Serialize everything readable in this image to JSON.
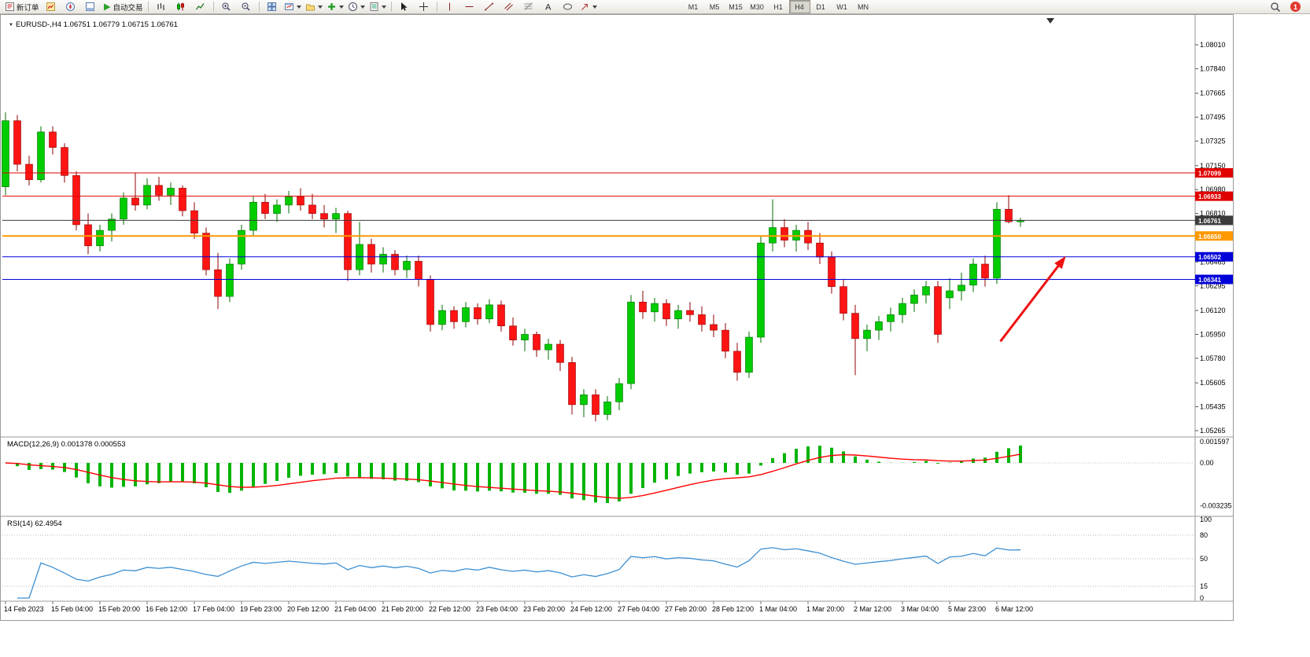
{
  "toolbar": {
    "new_order_label": "新订单",
    "auto_trading_label": "自动交易",
    "timeframes": [
      "M1",
      "M5",
      "M15",
      "M30",
      "H1",
      "H4",
      "D1",
      "W1",
      "MN"
    ],
    "active_timeframe": "H4",
    "badge_count": "1"
  },
  "window": {
    "symbol_title": "EURUSD-,H4",
    "ohlc": "1.06751 1.06779 1.06715 1.06761"
  },
  "panels": {
    "macd": {
      "name": "MACD(12,26,9)",
      "values": "0.001378 0.000553"
    },
    "rsi": {
      "name": "RSI(14)",
      "value": "62.4954"
    }
  },
  "chart_data": {
    "type": "candlestick",
    "symbol": "EURUSD-",
    "timeframe": "H4",
    "ohlc_display": {
      "open": "1.06751",
      "high": "1.06779",
      "low": "1.06715",
      "close": "1.06761"
    },
    "price_axis": {
      "ticks": [
        "1.08010",
        "1.07840",
        "1.07665",
        "1.07495",
        "1.07325",
        "1.07150",
        "1.06980",
        "1.06810",
        "1.06635",
        "1.06465",
        "1.06295",
        "1.06120",
        "1.05950",
        "1.05780",
        "1.05605",
        "1.05435",
        "1.05265"
      ]
    },
    "time_labels": [
      "14 Feb 2023",
      "15 Feb 04:00",
      "15 Feb 20:00",
      "16 Feb 12:00",
      "17 Feb 04:00",
      "19 Feb 23:00",
      "20 Feb 12:00",
      "21 Feb 04:00",
      "21 Feb 20:00",
      "22 Feb 12:00",
      "23 Feb 04:00",
      "23 Feb 20:00",
      "24 Feb 12:00",
      "27 Feb 04:00",
      "27 Feb 20:00",
      "28 Feb 12:00",
      "1 Mar 04:00",
      "1 Mar 20:00",
      "2 Mar 12:00",
      "3 Mar 04:00",
      "5 Mar 23:00",
      "6 Mar 12:00"
    ],
    "candles": [
      [
        1.07,
        1.0753,
        1.0694,
        1.0747
      ],
      [
        1.0747,
        1.0751,
        1.0711,
        1.0716
      ],
      [
        1.0716,
        1.0722,
        1.0701,
        1.0705
      ],
      [
        1.0705,
        1.0743,
        1.0703,
        1.0739
      ],
      [
        1.0739,
        1.0743,
        1.0723,
        1.0728
      ],
      [
        1.0728,
        1.0731,
        1.0703,
        1.0708
      ],
      [
        1.0708,
        1.0711,
        1.0669,
        1.0673
      ],
      [
        1.0673,
        1.0681,
        1.0652,
        1.0658
      ],
      [
        1.0658,
        1.0673,
        1.0654,
        1.0669
      ],
      [
        1.0669,
        1.0681,
        1.0661,
        1.0677
      ],
      [
        1.0677,
        1.0696,
        1.0673,
        1.0692
      ],
      [
        1.0692,
        1.071,
        1.0683,
        1.0687
      ],
      [
        1.0687,
        1.0706,
        1.0684,
        1.0701
      ],
      [
        1.0701,
        1.0707,
        1.069,
        1.0694
      ],
      [
        1.0694,
        1.0703,
        1.0687,
        1.0699
      ],
      [
        1.0699,
        1.0701,
        1.0679,
        1.0683
      ],
      [
        1.0683,
        1.0689,
        1.0663,
        1.0667
      ],
      [
        1.0667,
        1.0671,
        1.0637,
        1.0641
      ],
      [
        1.0641,
        1.0653,
        1.0613,
        1.0622
      ],
      [
        1.0622,
        1.0649,
        1.0618,
        1.0645
      ],
      [
        1.0645,
        1.0673,
        1.0641,
        1.0669
      ],
      [
        1.0669,
        1.0693,
        1.0665,
        1.0689
      ],
      [
        1.0689,
        1.0695,
        1.0677,
        1.0681
      ],
      [
        1.0681,
        1.0691,
        1.0675,
        1.0687
      ],
      [
        1.0687,
        1.0697,
        1.0681,
        1.0693
      ],
      [
        1.0693,
        1.0699,
        1.0683,
        1.0687
      ],
      [
        1.0687,
        1.0695,
        1.0677,
        1.0681
      ],
      [
        1.0681,
        1.0687,
        1.0671,
        1.0677
      ],
      [
        1.0677,
        1.0685,
        1.0667,
        1.0681
      ],
      [
        1.0681,
        1.0683,
        1.0633,
        1.0641
      ],
      [
        1.0641,
        1.0675,
        1.0637,
        1.0659
      ],
      [
        1.0659,
        1.0663,
        1.0639,
        1.0645
      ],
      [
        1.0645,
        1.0657,
        1.0639,
        1.0652
      ],
      [
        1.0652,
        1.0655,
        1.0637,
        1.0641
      ],
      [
        1.0641,
        1.0651,
        1.0635,
        1.0647
      ],
      [
        1.0647,
        1.0651,
        1.0629,
        1.0634
      ],
      [
        1.0634,
        1.0637,
        1.0597,
        1.0602
      ],
      [
        1.0602,
        1.0616,
        1.0598,
        1.0612
      ],
      [
        1.0612,
        1.0615,
        1.0599,
        1.0604
      ],
      [
        1.0604,
        1.0618,
        1.06,
        1.0614
      ],
      [
        1.0614,
        1.0617,
        1.0602,
        1.0606
      ],
      [
        1.0606,
        1.062,
        1.0603,
        1.0616
      ],
      [
        1.0616,
        1.0619,
        1.0597,
        1.0601
      ],
      [
        1.0601,
        1.0607,
        1.0587,
        1.0591
      ],
      [
        1.0591,
        1.0599,
        1.0583,
        1.0595
      ],
      [
        1.0595,
        1.0597,
        1.0579,
        1.0584
      ],
      [
        1.0584,
        1.0592,
        1.0577,
        1.0588
      ],
      [
        1.0588,
        1.0591,
        1.0569,
        1.0575
      ],
      [
        1.0575,
        1.0579,
        1.0538,
        1.0545
      ],
      [
        1.0545,
        1.0556,
        1.0536,
        1.0552
      ],
      [
        1.0552,
        1.0556,
        1.0533,
        1.0538
      ],
      [
        1.0538,
        1.0551,
        1.0534,
        1.0547
      ],
      [
        1.0547,
        1.0564,
        1.0541,
        1.056
      ],
      [
        1.056,
        1.0623,
        1.0556,
        1.0618
      ],
      [
        1.0618,
        1.0626,
        1.0606,
        1.0611
      ],
      [
        1.0611,
        1.0621,
        1.0604,
        1.0617
      ],
      [
        1.0617,
        1.062,
        1.0601,
        1.0606
      ],
      [
        1.0606,
        1.0616,
        1.0599,
        1.0612
      ],
      [
        1.0612,
        1.0618,
        1.0604,
        1.0609
      ],
      [
        1.0609,
        1.0615,
        1.0597,
        1.0602
      ],
      [
        1.0602,
        1.0609,
        1.0593,
        1.0598
      ],
      [
        1.0598,
        1.0603,
        1.0578,
        1.0583
      ],
      [
        1.0583,
        1.0589,
        1.0562,
        1.0568
      ],
      [
        1.0568,
        1.0597,
        1.0564,
        1.0593
      ],
      [
        1.0593,
        1.0665,
        1.0589,
        1.066
      ],
      [
        1.066,
        1.0691,
        1.0654,
        1.0671
      ],
      [
        1.0671,
        1.0677,
        1.0657,
        1.0662
      ],
      [
        1.0662,
        1.0673,
        1.0654,
        1.0669
      ],
      [
        1.0669,
        1.0675,
        1.0655,
        1.066
      ],
      [
        1.066,
        1.0667,
        1.0645,
        1.065
      ],
      [
        1.065,
        1.0654,
        1.0624,
        1.0629
      ],
      [
        1.0629,
        1.0634,
        1.0605,
        1.061
      ],
      [
        1.061,
        1.0616,
        1.0566,
        1.0592
      ],
      [
        1.0592,
        1.0602,
        1.0583,
        1.0598
      ],
      [
        1.0598,
        1.0608,
        1.0591,
        1.0604
      ],
      [
        1.0604,
        1.0614,
        1.0597,
        1.0609
      ],
      [
        1.0609,
        1.0621,
        1.0603,
        1.0617
      ],
      [
        1.0617,
        1.0627,
        1.0611,
        1.0623
      ],
      [
        1.0623,
        1.0633,
        1.0617,
        1.0629
      ],
      [
        1.0629,
        1.0633,
        1.0589,
        1.0595
      ],
      [
        1.0621,
        1.0635,
        1.0613,
        1.0626
      ],
      [
        1.0626,
        1.0639,
        1.0619,
        1.063
      ],
      [
        1.063,
        1.0649,
        1.0625,
        1.0645
      ],
      [
        1.0645,
        1.0651,
        1.0629,
        1.0635
      ],
      [
        1.0635,
        1.0689,
        1.0631,
        1.0684
      ],
      [
        1.0684,
        1.0694,
        1.0674,
        1.06751
      ],
      [
        1.06751,
        1.06779,
        1.06715,
        1.06761
      ]
    ],
    "hlines": [
      {
        "price": 1.07099,
        "label": "1.07099",
        "color": "#e00000",
        "width": 1
      },
      {
        "price": 1.06933,
        "label": "1.06933",
        "color": "#e00000",
        "width": 1
      },
      {
        "price": 1.06761,
        "label": "1.06761",
        "color": "#3c3c3c",
        "width": 1
      },
      {
        "price": 1.0665,
        "label": "1.06650",
        "color": "#ff9900",
        "width": 2
      },
      {
        "price": 1.06502,
        "label": "1.06502",
        "color": "#0000d8",
        "width": 1
      },
      {
        "price": 1.06341,
        "label": "1.06341",
        "color": "#0000d8",
        "width": 1
      }
    ],
    "arrow": {
      "from_bar": 84.3,
      "from_price": 1.059,
      "to_bar": 89.6,
      "to_price": 1.0648,
      "color": "#ee1111"
    },
    "macd": {
      "label": "MACD(12,26,9)",
      "fast": 12,
      "slow": 26,
      "signal": 9,
      "value": "0.001378",
      "signal_value": "0.000553",
      "axis": [
        "0.001597",
        "0.00",
        "-0.003235"
      ],
      "hist_color": "#00b400",
      "signal_color": "#ff0000"
    },
    "rsi": {
      "label": "RSI(14)",
      "period": 14,
      "value": "62.4954",
      "levels": [
        80,
        50,
        15
      ],
      "axis_labels": [
        "100",
        "80",
        "50",
        "15",
        "0"
      ],
      "line_color": "#3d8fd1"
    }
  }
}
